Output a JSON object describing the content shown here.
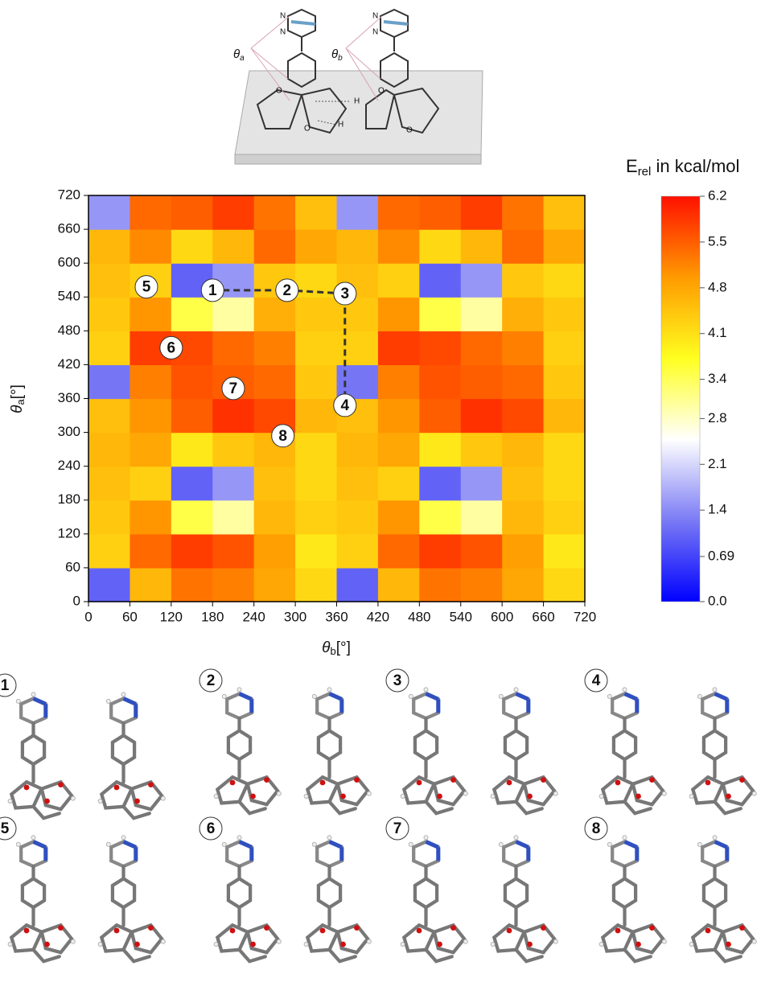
{
  "chart_data": {
    "type": "heatmap",
    "xlabel": [
      "θ",
      "b",
      "[°]"
    ],
    "ylabel": [
      "θ",
      "a",
      "[°]"
    ],
    "x": [
      30,
      90,
      150,
      210,
      270,
      330,
      390,
      450,
      510,
      570,
      630,
      690
    ],
    "y": [
      30,
      90,
      150,
      210,
      270,
      330,
      390,
      450,
      510,
      570,
      630,
      690
    ],
    "xlim": [
      0,
      720
    ],
    "ylim": [
      0,
      720
    ],
    "xticks": [
      0,
      60,
      120,
      180,
      240,
      300,
      360,
      420,
      480,
      540,
      600,
      660,
      720
    ],
    "yticks": [
      0,
      60,
      120,
      180,
      240,
      300,
      360,
      420,
      480,
      540,
      600,
      660,
      720
    ],
    "z": [
      [
        1.0,
        4.6,
        5.3,
        5.2,
        4.8,
        4.2,
        1.0,
        4.6,
        5.3,
        5.2,
        4.8,
        4.2
      ],
      [
        4.3,
        5.4,
        5.8,
        5.6,
        4.9,
        4.0,
        4.3,
        5.4,
        5.8,
        5.6,
        4.9,
        4.0
      ],
      [
        4.4,
        5.0,
        3.5,
        3.0,
        4.6,
        4.3,
        4.4,
        5.0,
        3.5,
        3.0,
        4.6,
        4.3
      ],
      [
        4.5,
        4.3,
        1.0,
        1.5,
        4.5,
        4.2,
        4.5,
        4.3,
        1.0,
        1.5,
        4.5,
        4.2
      ],
      [
        4.6,
        4.8,
        4.0,
        4.4,
        4.6,
        4.2,
        4.6,
        4.8,
        4.0,
        4.4,
        4.6,
        4.2
      ],
      [
        4.5,
        5.0,
        5.5,
        5.9,
        5.7,
        4.6,
        4.5,
        5.0,
        5.5,
        5.9,
        5.7,
        4.6
      ],
      [
        1.2,
        5.2,
        5.6,
        5.5,
        5.4,
        4.4,
        1.2,
        5.2,
        5.6,
        5.5,
        5.4,
        4.4
      ],
      [
        4.3,
        5.8,
        5.7,
        5.4,
        5.2,
        4.3,
        4.3,
        5.8,
        5.7,
        5.4,
        5.2,
        4.3
      ],
      [
        4.4,
        5.0,
        3.5,
        3.0,
        4.7,
        4.4,
        4.4,
        5.0,
        3.5,
        3.0,
        4.7,
        4.4
      ],
      [
        4.5,
        4.3,
        1.0,
        1.5,
        4.4,
        4.2,
        4.5,
        4.3,
        1.0,
        1.5,
        4.4,
        4.2
      ],
      [
        4.6,
        5.1,
        4.2,
        4.6,
        5.4,
        4.8,
        4.6,
        5.1,
        4.2,
        4.6,
        5.4,
        4.8
      ],
      [
        1.5,
        5.4,
        5.5,
        5.8,
        5.3,
        4.5,
        1.5,
        5.4,
        5.5,
        5.8,
        5.3,
        4.5
      ]
    ],
    "colorbar_label": [
      "E",
      "rel",
      " in kcal/mol"
    ],
    "clim": [
      0,
      6.2
    ],
    "colormap": [
      "#0000ff",
      "#7a7af5",
      "#ffffff",
      "#ffff20",
      "#ff9a00",
      "#ff1000"
    ],
    "cticks": [
      {
        "value": 0,
        "label": "0.0"
      },
      0.69,
      1.4,
      2.1,
      2.8,
      3.4,
      4.1,
      4.8,
      5.5,
      6.2
    ],
    "points": [
      {
        "label": "1",
        "x": 180,
        "y": 552
      },
      {
        "label": "2",
        "x": 288,
        "y": 552
      },
      {
        "label": "3",
        "x": 372,
        "y": 546
      },
      {
        "label": "4",
        "x": 372,
        "y": 348
      },
      {
        "label": "5",
        "x": 84,
        "y": 558
      },
      {
        "label": "6",
        "x": 120,
        "y": 450
      },
      {
        "label": "7",
        "x": 210,
        "y": 378
      },
      {
        "label": "8",
        "x": 282,
        "y": 294
      }
    ],
    "path": {
      "x": [
        180,
        288,
        372,
        372
      ],
      "y": [
        552,
        552,
        546,
        348
      ]
    },
    "scheme": {
      "angles": [
        [
          "θ",
          "a"
        ],
        [
          "θ",
          "b"
        ]
      ],
      "atoms": [
        "N",
        "N",
        "N",
        "N",
        "O",
        "O",
        "O",
        "O",
        "H",
        "H"
      ]
    }
  }
}
